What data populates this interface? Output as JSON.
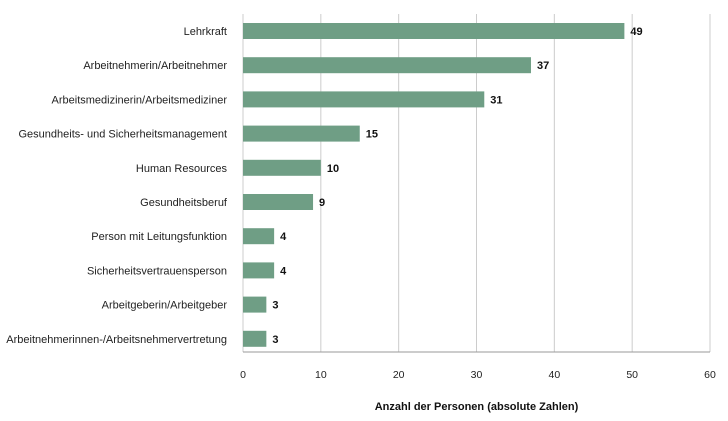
{
  "chart_data": {
    "type": "bar",
    "orientation": "horizontal",
    "categories": [
      "Lehrkraft",
      "Arbeitnehmerin/Arbeitnehmer",
      "Arbeitsmedizinerin/Arbeitsmediziner",
      "Gesundheits- und Sicherheitsmanagement",
      "Human Resources",
      "Gesundheitsberuf",
      "Person mit Leitungsfunktion",
      "Sicherheitsvertrauensperson",
      "Arbeitgeberin/Arbeitgeber",
      "Arbeitnehmerinnen-/Arbeitsnehmervertretung"
    ],
    "values": [
      49,
      37,
      31,
      15,
      10,
      9,
      4,
      4,
      3,
      3
    ],
    "data_labels": [
      "49",
      "37",
      "31",
      "15",
      "10",
      "9",
      "4",
      "4",
      "3",
      "3"
    ],
    "title": "",
    "xlabel": "Anzahl der Personen (absolute Zahlen)",
    "ylabel": "",
    "xlim": [
      0,
      60
    ],
    "xticks": [
      0,
      10,
      20,
      30,
      40,
      50,
      60
    ],
    "xtick_labels": [
      "0",
      "10",
      "20",
      "30",
      "40",
      "50",
      "60"
    ],
    "grid": "vertical",
    "legend": "none",
    "colors": {
      "bar": "#6f9e85",
      "grid": "#cccccc",
      "axis": "#999999"
    }
  }
}
